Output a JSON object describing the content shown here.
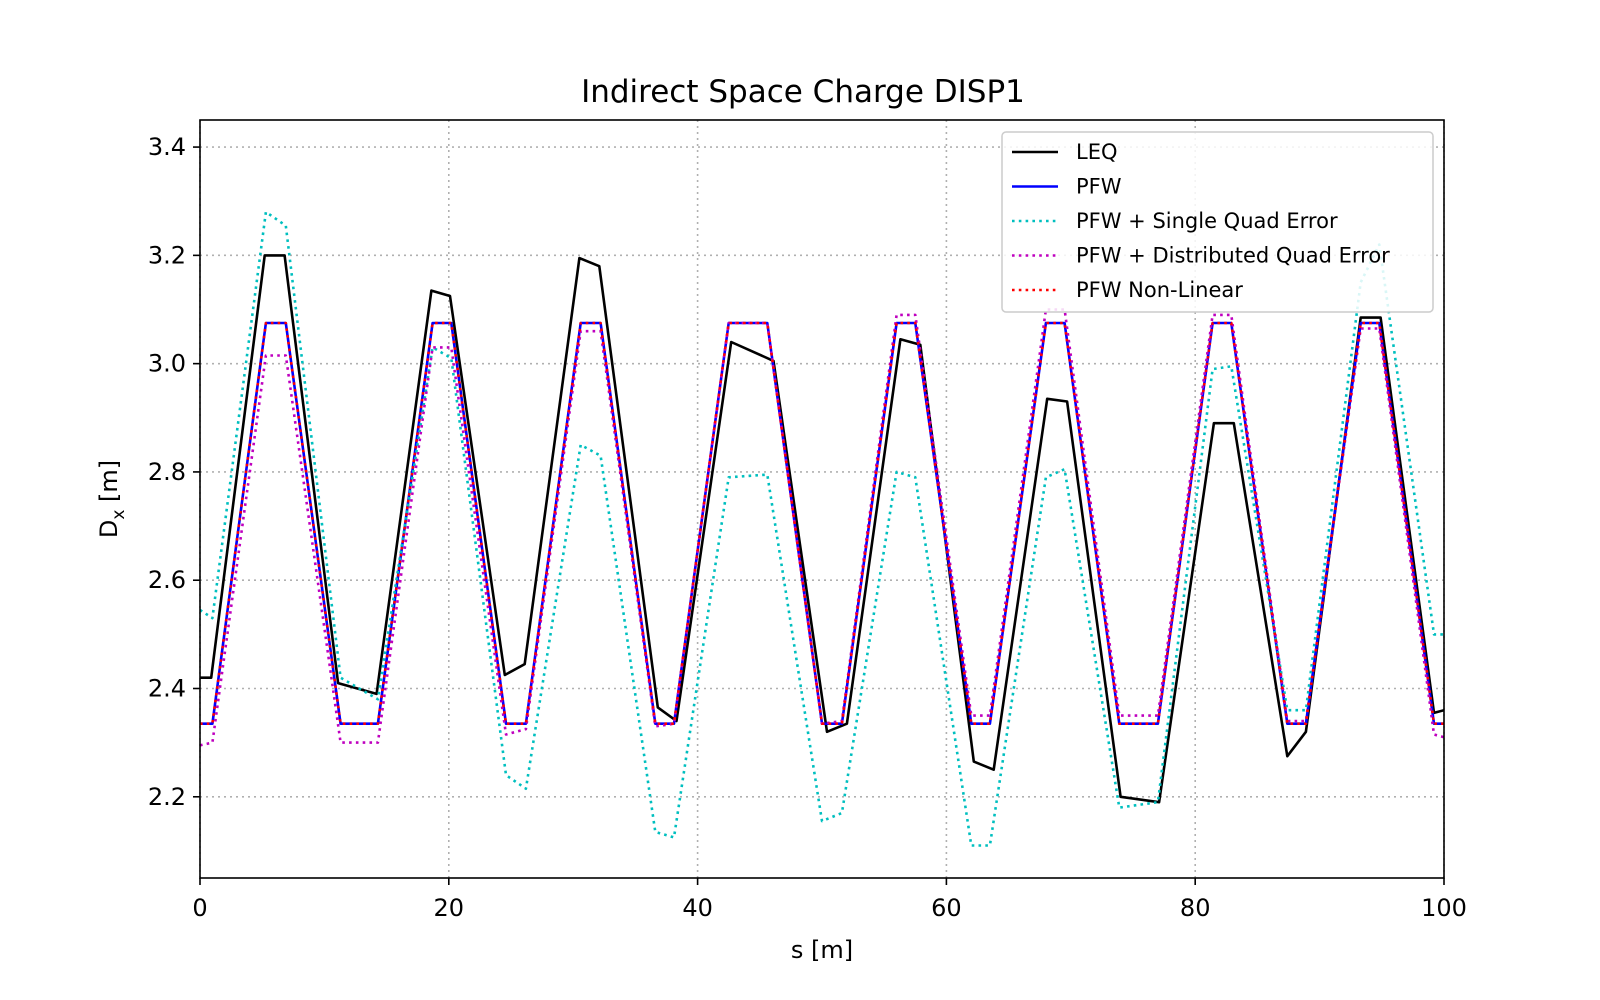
{
  "chart_data": {
    "type": "line",
    "title": "Indirect Space Charge DISP1",
    "xlabel": "s [m]",
    "ylabel_main": "D",
    "ylabel_sub": "x",
    "ylabel_unit": " [m]",
    "xlim": [
      0,
      100
    ],
    "ylim": [
      2.05,
      3.45
    ],
    "xticks": [
      0,
      20,
      40,
      60,
      80,
      100
    ],
    "xtick_labels": [
      "0",
      "20",
      "40",
      "60",
      "80",
      "100"
    ],
    "yticks": [
      2.2,
      2.4,
      2.6,
      2.8,
      3.0,
      3.2,
      3.4
    ],
    "ytick_labels": [
      "2.2",
      "2.4",
      "2.6",
      "2.8",
      "3.0",
      "3.2",
      "3.4"
    ],
    "grid": true,
    "legend_position": "top-right",
    "series": [
      {
        "name": "LEQ",
        "color": "#000000",
        "style": "solid",
        "x": [
          0,
          0.9,
          5.2,
          6.8,
          11.1,
          14.2,
          18.6,
          20.1,
          24.5,
          26.1,
          30.5,
          32.1,
          36.8,
          38.3,
          42.7,
          46.1,
          50.4,
          52.0,
          56.3,
          57.9,
          62.2,
          63.8,
          68.1,
          69.7,
          74.0,
          77.1,
          81.5,
          83.1,
          87.4,
          88.9,
          93.3,
          94.9,
          99.2,
          100
        ],
        "y": [
          2.42,
          2.42,
          3.2,
          3.2,
          2.41,
          2.39,
          3.135,
          3.125,
          2.425,
          2.445,
          3.195,
          3.18,
          2.365,
          2.34,
          3.04,
          3.005,
          2.32,
          2.335,
          3.045,
          3.035,
          2.265,
          2.25,
          2.935,
          2.93,
          2.2,
          2.19,
          2.89,
          2.89,
          2.275,
          2.32,
          3.085,
          3.085,
          2.355,
          2.36
        ]
      },
      {
        "name": "PFW",
        "color": "#0000ff",
        "style": "solid",
        "x": [
          0,
          1.0,
          5.3,
          6.9,
          11.3,
          14.3,
          18.7,
          20.2,
          24.6,
          26.2,
          30.6,
          32.2,
          36.6,
          38.1,
          42.5,
          45.6,
          50.0,
          51.6,
          56.0,
          57.5,
          62.0,
          63.5,
          68.0,
          69.5,
          73.9,
          77.0,
          81.4,
          82.9,
          87.4,
          88.9,
          93.3,
          94.8,
          99.2,
          100
        ],
        "y": [
          2.335,
          2.335,
          3.075,
          3.075,
          2.335,
          2.335,
          3.075,
          3.075,
          2.335,
          2.335,
          3.075,
          3.075,
          2.335,
          2.335,
          3.075,
          3.075,
          2.335,
          2.335,
          3.075,
          3.075,
          2.335,
          2.335,
          3.075,
          3.075,
          2.335,
          2.335,
          3.075,
          3.075,
          2.335,
          2.335,
          3.075,
          3.075,
          2.335,
          2.335
        ]
      },
      {
        "name": "PFW + Single Quad Error",
        "color": "#00bfbf",
        "style": "dotted",
        "x": [
          0,
          1.0,
          5.3,
          6.9,
          11.3,
          14.3,
          18.7,
          20.2,
          24.6,
          26.2,
          30.6,
          32.2,
          36.6,
          38.1,
          42.5,
          45.6,
          50.0,
          51.6,
          56.0,
          57.5,
          62.0,
          63.5,
          68.0,
          69.5,
          73.9,
          77.0,
          81.4,
          82.9,
          87.4,
          88.9,
          93.3,
          94.8,
          99.2,
          100
        ],
        "y": [
          2.545,
          2.53,
          3.28,
          3.255,
          2.42,
          2.38,
          3.03,
          3.01,
          2.24,
          2.215,
          2.85,
          2.83,
          2.135,
          2.125,
          2.79,
          2.795,
          2.155,
          2.17,
          2.8,
          2.79,
          2.11,
          2.11,
          2.79,
          2.805,
          2.18,
          2.19,
          2.99,
          2.995,
          2.36,
          2.36,
          3.15,
          3.22,
          2.5,
          2.5
        ]
      },
      {
        "name": "PFW + Distributed Quad Error",
        "color": "#bf00bf",
        "style": "dotted",
        "x": [
          0,
          1.0,
          5.3,
          6.9,
          11.3,
          14.3,
          18.7,
          20.2,
          24.6,
          26.2,
          30.6,
          32.2,
          36.6,
          38.1,
          42.5,
          45.6,
          50.0,
          51.6,
          56.0,
          57.5,
          62.0,
          63.5,
          68.0,
          69.5,
          73.9,
          77.0,
          81.4,
          82.9,
          87.4,
          88.9,
          93.3,
          94.8,
          99.2,
          100
        ],
        "y": [
          2.295,
          2.3,
          3.015,
          3.015,
          2.3,
          2.3,
          3.03,
          3.03,
          2.315,
          2.325,
          3.06,
          3.06,
          2.33,
          2.335,
          3.075,
          3.075,
          2.335,
          2.34,
          3.09,
          3.09,
          2.35,
          2.35,
          3.1,
          3.1,
          2.35,
          2.35,
          3.09,
          3.09,
          2.34,
          2.34,
          3.065,
          3.065,
          2.315,
          2.31
        ]
      },
      {
        "name": "PFW Non-Linear",
        "color": "#ff0000",
        "style": "dotted",
        "x": [
          0,
          1.0,
          5.3,
          6.9,
          11.3,
          14.3,
          18.7,
          20.2,
          24.6,
          26.2,
          30.6,
          32.2,
          36.6,
          38.1,
          42.5,
          45.6,
          50.0,
          51.6,
          56.0,
          57.5,
          62.0,
          63.5,
          68.0,
          69.5,
          73.9,
          77.0,
          81.4,
          82.9,
          87.4,
          88.9,
          93.3,
          94.8,
          99.2,
          100
        ],
        "y": [
          2.335,
          2.335,
          3.075,
          3.075,
          2.335,
          2.335,
          3.075,
          3.075,
          2.335,
          2.335,
          3.075,
          3.075,
          2.335,
          2.335,
          3.075,
          3.075,
          2.335,
          2.335,
          3.075,
          3.075,
          2.335,
          2.335,
          3.075,
          3.075,
          2.335,
          2.335,
          3.075,
          3.075,
          2.335,
          2.335,
          3.075,
          3.075,
          2.335,
          2.335
        ]
      }
    ]
  }
}
